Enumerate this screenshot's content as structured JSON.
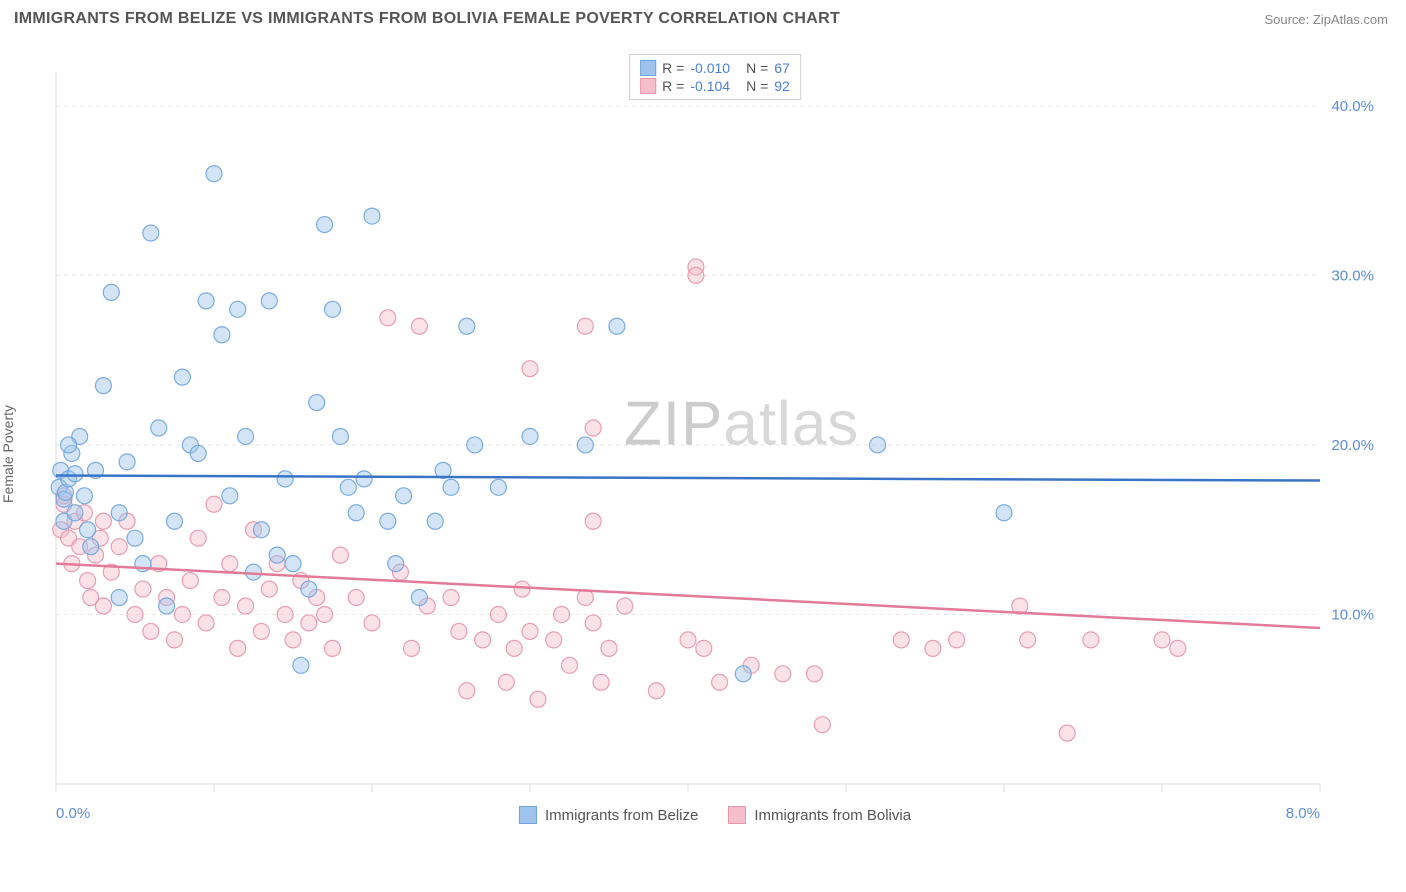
{
  "header": {
    "title": "IMMIGRANTS FROM BELIZE VS IMMIGRANTS FROM BOLIVIA FEMALE POVERTY CORRELATION CHART",
    "source_prefix": "Source: ",
    "source_name": "ZipAtlas.com"
  },
  "watermark": {
    "part1": "ZIP",
    "part2": "atlas"
  },
  "chart": {
    "type": "scatter",
    "ylabel": "Female Poverty",
    "xlim": [
      0,
      8.0
    ],
    "ylim": [
      0,
      42
    ],
    "x_ticks": [
      0,
      1,
      2,
      3,
      4,
      5,
      6,
      7,
      8
    ],
    "x_tick_labels_shown": {
      "0": "0.0%",
      "8": "8.0%"
    },
    "y_gridlines": [
      10,
      20,
      30,
      40
    ],
    "y_tick_labels": {
      "10": "10.0%",
      "20": "20.0%",
      "30": "30.0%",
      "40": "40.0%"
    },
    "background_color": "#ffffff",
    "grid_color": "#e6e6e6",
    "grid_dash": "4,4",
    "axis_color": "#dddddd",
    "axis_label_color": "#5b8cd8",
    "marker_radius": 8,
    "marker_opacity": 0.45,
    "marker_stroke_opacity": 0.9,
    "line_width": 2.5,
    "series": [
      {
        "name": "Immigrants from Belize",
        "color_fill": "#9ec3ed",
        "color_stroke": "#6fa4dd",
        "line_color": "#3a74c7",
        "R": "-0.010",
        "N": "67",
        "trend": {
          "x1": 0,
          "y1": 18.2,
          "x2": 8.0,
          "y2": 17.9
        },
        "points": [
          [
            0.02,
            17.5
          ],
          [
            0.03,
            18.5
          ],
          [
            0.05,
            16.8
          ],
          [
            0.06,
            17.2
          ],
          [
            0.08,
            18.0
          ],
          [
            0.05,
            15.5
          ],
          [
            0.1,
            19.5
          ],
          [
            0.12,
            18.3
          ],
          [
            0.15,
            20.5
          ],
          [
            0.18,
            17.0
          ],
          [
            0.2,
            15.0
          ],
          [
            0.22,
            14.0
          ],
          [
            0.3,
            23.5
          ],
          [
            0.35,
            29.0
          ],
          [
            0.4,
            16.0
          ],
          [
            0.45,
            19.0
          ],
          [
            0.5,
            14.5
          ],
          [
            0.55,
            13.0
          ],
          [
            0.25,
            18.5
          ],
          [
            0.6,
            32.5
          ],
          [
            0.65,
            21.0
          ],
          [
            0.7,
            10.5
          ],
          [
            0.75,
            15.5
          ],
          [
            0.8,
            24.0
          ],
          [
            0.85,
            20.0
          ],
          [
            0.9,
            19.5
          ],
          [
            0.95,
            28.5
          ],
          [
            1.0,
            36.0
          ],
          [
            1.05,
            26.5
          ],
          [
            1.1,
            17.0
          ],
          [
            1.15,
            28.0
          ],
          [
            1.2,
            20.5
          ],
          [
            1.25,
            12.5
          ],
          [
            1.3,
            15.0
          ],
          [
            1.35,
            28.5
          ],
          [
            1.4,
            13.5
          ],
          [
            1.45,
            18.0
          ],
          [
            1.5,
            13.0
          ],
          [
            1.55,
            7.0
          ],
          [
            1.6,
            11.5
          ],
          [
            1.65,
            22.5
          ],
          [
            1.7,
            33.0
          ],
          [
            1.75,
            28.0
          ],
          [
            1.8,
            20.5
          ],
          [
            1.85,
            17.5
          ],
          [
            1.9,
            16.0
          ],
          [
            1.95,
            18.0
          ],
          [
            2.0,
            33.5
          ],
          [
            2.1,
            15.5
          ],
          [
            2.2,
            17.0
          ],
          [
            2.3,
            11.0
          ],
          [
            2.4,
            15.5
          ],
          [
            2.5,
            17.5
          ],
          [
            2.6,
            27.0
          ],
          [
            2.65,
            20.0
          ],
          [
            2.8,
            17.5
          ],
          [
            3.0,
            20.5
          ],
          [
            3.55,
            27.0
          ],
          [
            3.35,
            20.0
          ],
          [
            4.35,
            6.5
          ],
          [
            5.2,
            20.0
          ],
          [
            6.0,
            16.0
          ],
          [
            0.4,
            11.0
          ],
          [
            0.08,
            20.0
          ],
          [
            0.12,
            16.0
          ],
          [
            2.15,
            13.0
          ],
          [
            2.45,
            18.5
          ]
        ]
      },
      {
        "name": "Immigrants from Bolivia",
        "color_fill": "#f4bfcb",
        "color_stroke": "#e795aa",
        "line_color": "#e27a98",
        "R": "-0.104",
        "N": "92",
        "trend": {
          "x1": 0,
          "y1": 13.0,
          "x2": 8.0,
          "y2": 9.2
        },
        "points": [
          [
            0.03,
            15.0
          ],
          [
            0.05,
            16.5
          ],
          [
            0.08,
            14.5
          ],
          [
            0.1,
            13.0
          ],
          [
            0.12,
            15.5
          ],
          [
            0.15,
            14.0
          ],
          [
            0.18,
            16.0
          ],
          [
            0.2,
            12.0
          ],
          [
            0.22,
            11.0
          ],
          [
            0.25,
            13.5
          ],
          [
            0.28,
            14.5
          ],
          [
            0.3,
            10.5
          ],
          [
            0.35,
            12.5
          ],
          [
            0.4,
            14.0
          ],
          [
            0.45,
            15.5
          ],
          [
            0.5,
            10.0
          ],
          [
            0.55,
            11.5
          ],
          [
            0.6,
            9.0
          ],
          [
            0.65,
            13.0
          ],
          [
            0.7,
            11.0
          ],
          [
            0.75,
            8.5
          ],
          [
            0.8,
            10.0
          ],
          [
            0.85,
            12.0
          ],
          [
            0.9,
            14.5
          ],
          [
            0.95,
            9.5
          ],
          [
            1.0,
            16.5
          ],
          [
            1.05,
            11.0
          ],
          [
            1.1,
            13.0
          ],
          [
            1.15,
            8.0
          ],
          [
            1.2,
            10.5
          ],
          [
            1.25,
            15.0
          ],
          [
            1.3,
            9.0
          ],
          [
            1.35,
            11.5
          ],
          [
            1.4,
            13.0
          ],
          [
            1.45,
            10.0
          ],
          [
            1.5,
            8.5
          ],
          [
            1.55,
            12.0
          ],
          [
            1.6,
            9.5
          ],
          [
            1.65,
            11.0
          ],
          [
            1.7,
            10.0
          ],
          [
            1.75,
            8.0
          ],
          [
            1.8,
            13.5
          ],
          [
            1.9,
            11.0
          ],
          [
            2.0,
            9.5
          ],
          [
            2.1,
            27.5
          ],
          [
            2.18,
            12.5
          ],
          [
            2.25,
            8.0
          ],
          [
            2.35,
            10.5
          ],
          [
            2.3,
            27.0
          ],
          [
            2.5,
            11.0
          ],
          [
            2.55,
            9.0
          ],
          [
            2.6,
            5.5
          ],
          [
            2.7,
            8.5
          ],
          [
            2.8,
            10.0
          ],
          [
            2.85,
            6.0
          ],
          [
            2.9,
            8.0
          ],
          [
            2.95,
            11.5
          ],
          [
            3.0,
            9.0
          ],
          [
            3.05,
            5.0
          ],
          [
            3.15,
            8.5
          ],
          [
            3.2,
            10.0
          ],
          [
            3.25,
            7.0
          ],
          [
            3.35,
            27.0
          ],
          [
            3.35,
            11.0
          ],
          [
            3.4,
            15.5
          ],
          [
            3.4,
            21.0
          ],
          [
            3.45,
            6.0
          ],
          [
            3.5,
            8.0
          ],
          [
            3.6,
            10.5
          ],
          [
            3.8,
            5.5
          ],
          [
            4.0,
            8.5
          ],
          [
            4.05,
            30.5
          ],
          [
            4.05,
            30.0
          ],
          [
            4.1,
            8.0
          ],
          [
            4.2,
            6.0
          ],
          [
            4.4,
            7.0
          ],
          [
            4.6,
            6.5
          ],
          [
            4.85,
            3.5
          ],
          [
            4.8,
            6.5
          ],
          [
            5.35,
            8.5
          ],
          [
            5.55,
            8.0
          ],
          [
            5.7,
            8.5
          ],
          [
            6.1,
            10.5
          ],
          [
            6.15,
            8.5
          ],
          [
            6.55,
            8.5
          ],
          [
            6.4,
            3.0
          ],
          [
            7.1,
            8.0
          ],
          [
            7.0,
            8.5
          ],
          [
            0.05,
            17.0
          ],
          [
            0.3,
            15.5
          ],
          [
            3.0,
            24.5
          ],
          [
            3.4,
            9.5
          ]
        ]
      }
    ],
    "legend_bottom": [
      {
        "label": "Immigrants from Belize",
        "fill": "#9ec3ed",
        "stroke": "#6fa4dd"
      },
      {
        "label": "Immigrants from Bolivia",
        "fill": "#f4bfcb",
        "stroke": "#e795aa"
      }
    ]
  }
}
